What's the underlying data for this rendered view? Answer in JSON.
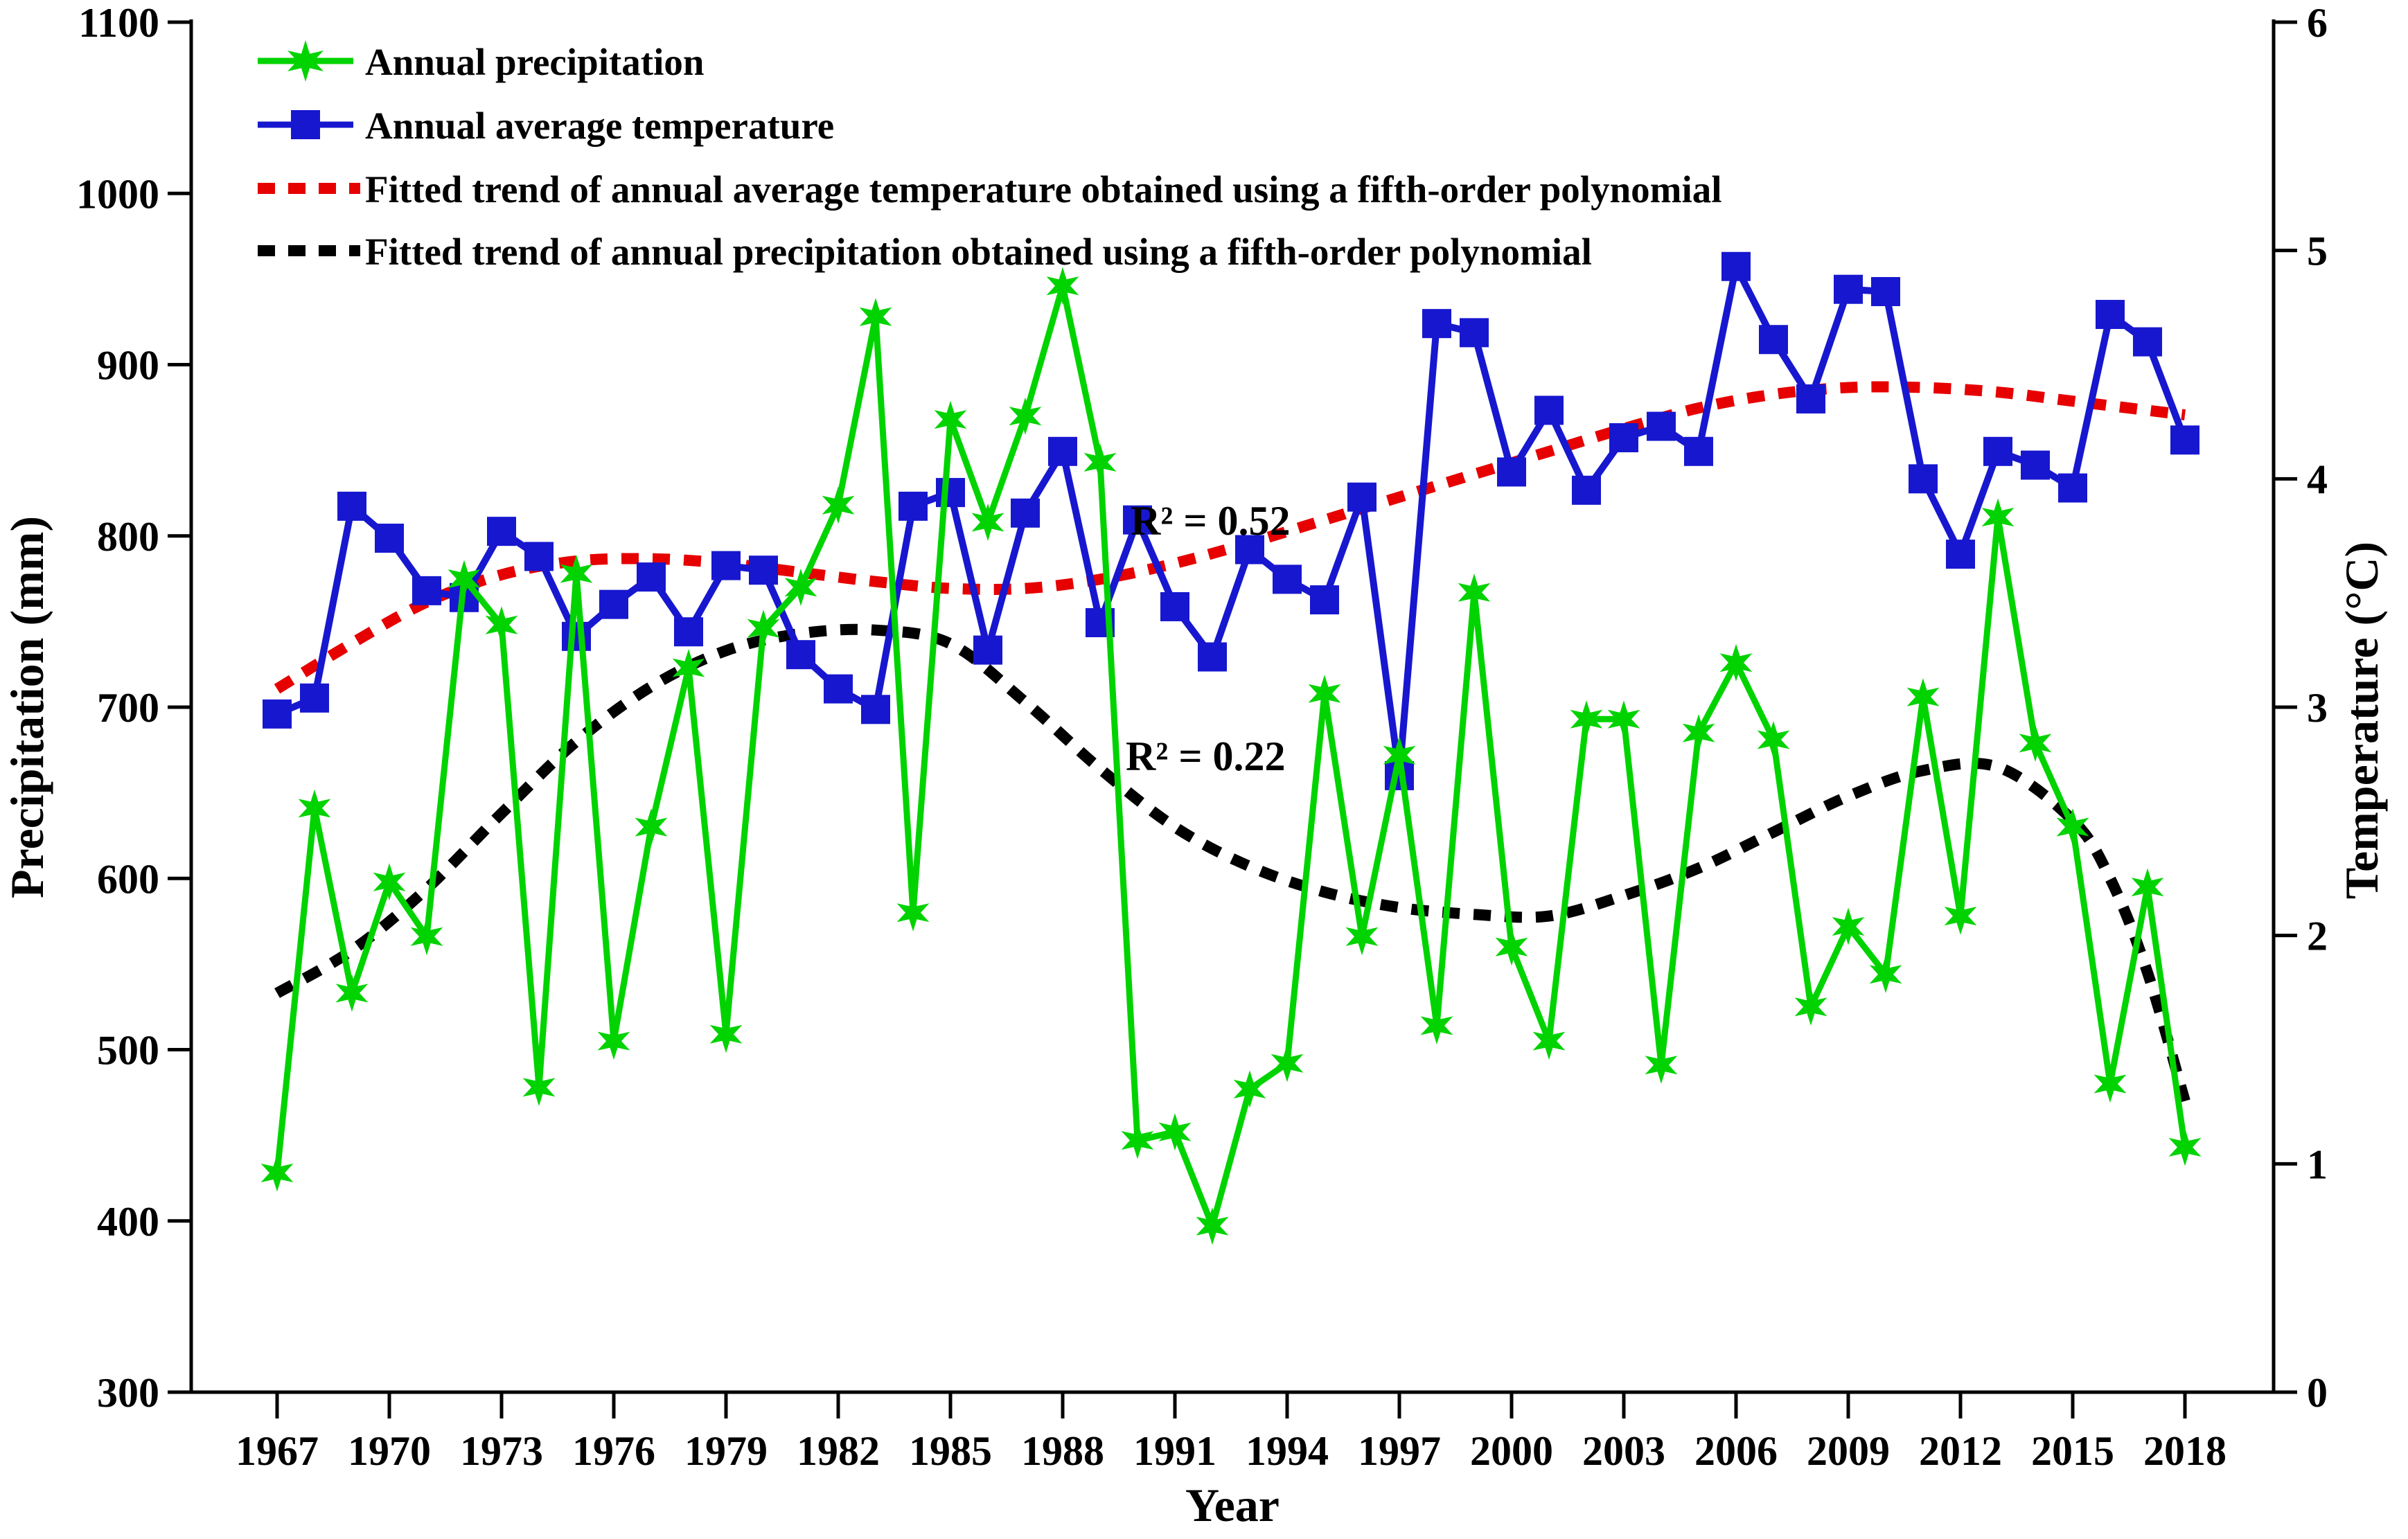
{
  "chart_data": {
    "type": "line",
    "title": "",
    "xlabel": "Year",
    "x_range": [
      1967,
      2018
    ],
    "x_ticks": [
      1967,
      1970,
      1973,
      1976,
      1979,
      1982,
      1985,
      1988,
      1991,
      1994,
      1997,
      2000,
      2003,
      2006,
      2009,
      2012,
      2015,
      2018
    ],
    "y_left": {
      "label": "Precipitation (mm)",
      "min": 300,
      "max": 1100,
      "ticks": [
        300,
        400,
        500,
        600,
        700,
        800,
        900,
        1000,
        1100
      ]
    },
    "y_right": {
      "label": "Temperature (°C)",
      "min": 0,
      "max": 6,
      "ticks": [
        0,
        1,
        2,
        3,
        4,
        5,
        6
      ]
    },
    "grid": false,
    "legend_position": "top-left",
    "years": [
      1967,
      1968,
      1969,
      1970,
      1971,
      1972,
      1973,
      1974,
      1975,
      1976,
      1977,
      1978,
      1979,
      1980,
      1981,
      1982,
      1983,
      1984,
      1985,
      1986,
      1987,
      1988,
      1989,
      1990,
      1991,
      1992,
      1993,
      1994,
      1995,
      1996,
      1997,
      1998,
      1999,
      2000,
      2001,
      2002,
      2003,
      2004,
      2005,
      2006,
      2007,
      2008,
      2009,
      2010,
      2011,
      2012,
      2013,
      2014,
      2015,
      2016,
      2017,
      2018
    ],
    "series": [
      {
        "name": "Annual precipitation",
        "axis": "left",
        "units": "mm",
        "color": "#00d300",
        "marker": "star",
        "values": [
          428,
          641,
          533,
          598,
          566,
          775,
          748,
          478,
          778,
          505,
          630,
          723,
          509,
          746,
          770,
          818,
          928,
          580,
          868,
          808,
          870,
          946,
          843,
          447,
          452,
          397,
          477,
          492,
          708,
          566,
          672,
          514,
          767,
          560,
          505,
          693,
          693,
          491,
          685,
          726,
          681,
          525,
          572,
          544,
          706,
          578,
          811,
          679,
          630,
          480,
          595,
          443
        ]
      },
      {
        "name": "Annual average temperature",
        "axis": "right",
        "units": "°C",
        "color": "#1717cf",
        "marker": "square",
        "values": [
          2.97,
          3.04,
          3.88,
          3.74,
          3.51,
          3.48,
          3.77,
          3.66,
          3.31,
          3.45,
          3.57,
          3.33,
          3.62,
          3.6,
          3.23,
          3.08,
          2.99,
          3.88,
          3.94,
          3.25,
          3.85,
          4.12,
          3.37,
          3.82,
          3.44,
          3.22,
          3.69,
          3.56,
          3.47,
          3.92,
          2.7,
          4.68,
          4.64,
          4.03,
          4.3,
          3.95,
          4.18,
          4.23,
          4.12,
          4.93,
          4.61,
          4.35,
          4.83,
          4.82,
          4.0,
          3.67,
          4.12,
          4.06,
          3.96,
          4.72,
          4.6,
          4.17
        ]
      }
    ],
    "trends": [
      {
        "name": "Fitted trend of annual average temperature obtained using a fifth-order polynomial",
        "axis": "right",
        "color": "#e60000",
        "style": "dotted",
        "r2": 0.52,
        "points": [
          [
            1967,
            3.08
          ],
          [
            1969,
            3.28
          ],
          [
            1971,
            3.46
          ],
          [
            1973,
            3.58
          ],
          [
            1975,
            3.64
          ],
          [
            1977,
            3.65
          ],
          [
            1979,
            3.63
          ],
          [
            1981,
            3.59
          ],
          [
            1983,
            3.55
          ],
          [
            1985,
            3.52
          ],
          [
            1987,
            3.52
          ],
          [
            1989,
            3.56
          ],
          [
            1991,
            3.63
          ],
          [
            1993,
            3.72
          ],
          [
            1995,
            3.82
          ],
          [
            1997,
            3.92
          ],
          [
            1999,
            4.02
          ],
          [
            2001,
            4.12
          ],
          [
            2003,
            4.22
          ],
          [
            2005,
            4.31
          ],
          [
            2007,
            4.37
          ],
          [
            2009,
            4.4
          ],
          [
            2011,
            4.4
          ],
          [
            2013,
            4.38
          ],
          [
            2015,
            4.34
          ],
          [
            2017,
            4.3
          ],
          [
            2018,
            4.28
          ]
        ]
      },
      {
        "name": "Fitted trend of annual precipitation obtained using a fifth-order polynomial",
        "axis": "left",
        "color": "#000000",
        "style": "dotted",
        "r2": 0.22,
        "points": [
          [
            1967,
            533
          ],
          [
            1969,
            558
          ],
          [
            1971,
            594
          ],
          [
            1973,
            638
          ],
          [
            1975,
            680
          ],
          [
            1977,
            712
          ],
          [
            1979,
            733
          ],
          [
            1981,
            743
          ],
          [
            1983,
            745
          ],
          [
            1985,
            737
          ],
          [
            1987,
            703
          ],
          [
            1989,
            664
          ],
          [
            1991,
            630
          ],
          [
            1993,
            607
          ],
          [
            1995,
            592
          ],
          [
            1997,
            583
          ],
          [
            1999,
            579
          ],
          [
            2001,
            578
          ],
          [
            2003,
            590
          ],
          [
            2005,
            606
          ],
          [
            2007,
            627
          ],
          [
            2009,
            648
          ],
          [
            2011,
            663
          ],
          [
            2013,
            665
          ],
          [
            2015,
            634
          ],
          [
            2016,
            600
          ],
          [
            2017,
            545
          ],
          [
            2018,
            470
          ]
        ]
      }
    ],
    "annotations": [
      {
        "text": "R² = 0.52",
        "color": "#e60000",
        "refers_to": "temperature trend"
      },
      {
        "text": "R² = 0.22",
        "color": "#000000",
        "refers_to": "precipitation trend"
      }
    ]
  },
  "legend": {
    "items": [
      {
        "label": "Annual precipitation",
        "color": "#00d300",
        "glyph": "line-with-star"
      },
      {
        "label": "Annual average temperature",
        "color": "#1717cf",
        "glyph": "line-with-square"
      },
      {
        "label": "Fitted trend of annual average temperature obtained using a fifth-order polynomial",
        "color": "#e60000",
        "glyph": "dotted-line"
      },
      {
        "label": "Fitted trend of annual precipitation obtained using a fifth-order polynomial",
        "color": "#000000",
        "glyph": "dotted-line"
      }
    ]
  }
}
